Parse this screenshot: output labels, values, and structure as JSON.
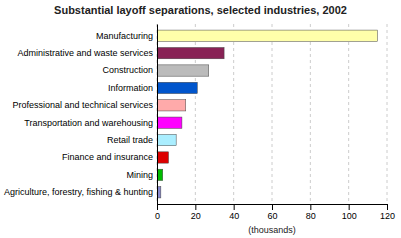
{
  "chart_data": {
    "type": "bar",
    "orientation": "horizontal",
    "title": "Substantial layoff separations, selected industries, 2002",
    "categories": [
      "Agriculture, forestry, fishing & hunting",
      "Mining",
      "Finance and insurance",
      "Retail trade",
      "Transportation and warehousing",
      "Professional and technical services",
      "Information",
      "Construction",
      "Administrative and waste services",
      "Manufacturing"
    ],
    "values": [
      2,
      3,
      6,
      10,
      13,
      15,
      21,
      27,
      35,
      115
    ],
    "colors": [
      "#8888cc",
      "#00bb00",
      "#dd0000",
      "#aaeeff",
      "#ff00ff",
      "#ffaaaa",
      "#0055cc",
      "#bbbbbb",
      "#882255",
      "#ffffaa"
    ],
    "xlabel": "(thousands)",
    "xlim": [
      0,
      120
    ],
    "xticks": [
      0,
      20,
      40,
      60,
      80,
      100,
      120
    ],
    "grid": true
  }
}
